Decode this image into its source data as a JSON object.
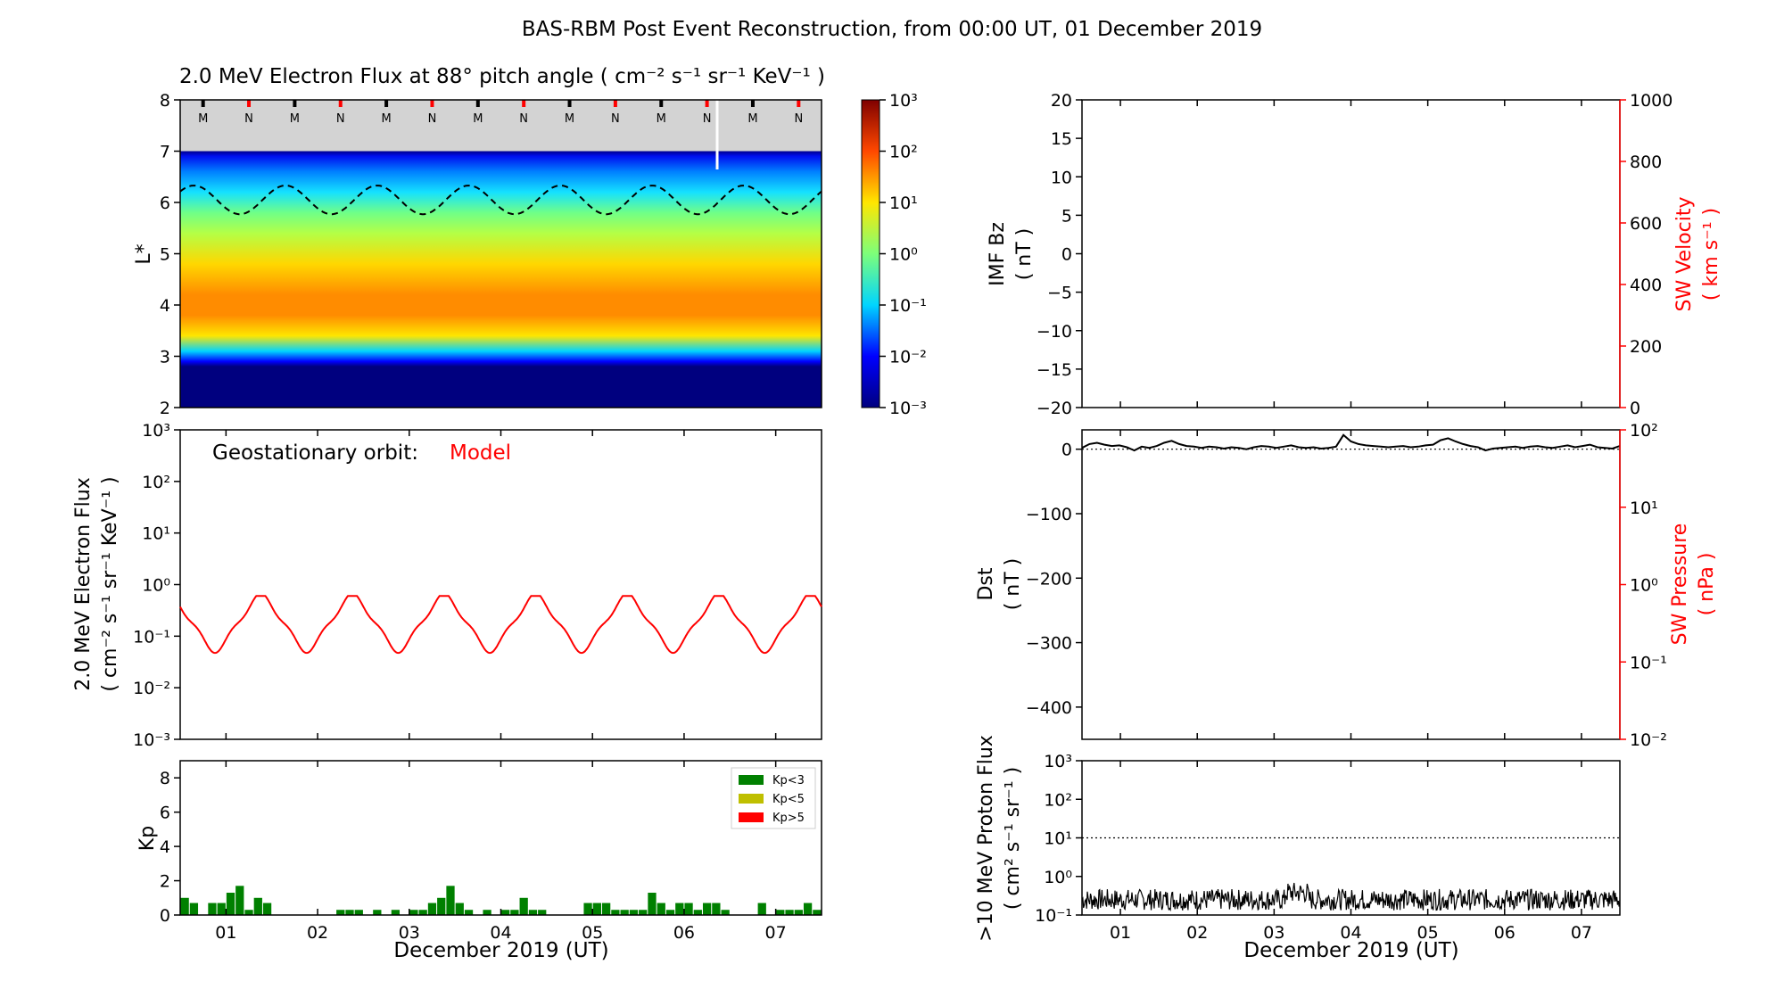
{
  "page": {
    "title": "BAS-RBM Post Event Reconstruction, from 00:00 UT, 01 December 2019"
  },
  "shared": {
    "day_ticks": [
      "01",
      "02",
      "03",
      "04",
      "05",
      "06",
      "07"
    ],
    "x_axis_label": "December 2019 (UT)"
  },
  "chart_data": [
    {
      "id": "lstar-flux",
      "type": "heatmap",
      "title": "2.0 MeV Electron Flux at 88° pitch angle ( cm⁻² s⁻¹ sr⁻¹ KeV⁻¹ )",
      "ylabel": "L*",
      "ylim": [
        2,
        8
      ],
      "yticks": [
        "2",
        "3",
        "4",
        "5",
        "6",
        "7",
        "8"
      ],
      "colorbar": {
        "scale": "log",
        "ticks": [
          "10⁻³",
          "10⁻²",
          "10⁻¹",
          "10⁰",
          "10¹",
          "10²",
          "10³"
        ],
        "stops": [
          "#00007f",
          "#0000ff",
          "#00d5ff",
          "#7dff7a",
          "#ffe600",
          "#ff4800",
          "#7f0000"
        ]
      },
      "profile": {
        "L": [
          2.0,
          2.8,
          2.9,
          3.1,
          3.4,
          3.8,
          4.2,
          4.8,
          5.4,
          5.8,
          6.2,
          6.6,
          6.9,
          7.0
        ],
        "color": [
          "#00007f",
          "#00007f",
          "#0000ff",
          "#00d5ff",
          "#ffe600",
          "#ff8c00",
          "#ff8c00",
          "#ffd700",
          "#b4ff46",
          "#6fff88",
          "#15e1ff",
          "#0080ff",
          "#0010f0",
          "#00008f"
        ]
      },
      "fill_above": "#d3d3d3",
      "fill_above_from": 7.0,
      "markers": [
        {
          "label": "M",
          "color": "#000000"
        },
        {
          "label": "N",
          "color": "#ff0000"
        },
        {
          "label": "M",
          "color": "#000000"
        },
        {
          "label": "N",
          "color": "#ff0000"
        },
        {
          "label": "M",
          "color": "#000000"
        },
        {
          "label": "N",
          "color": "#ff0000"
        },
        {
          "label": "M",
          "color": "#000000"
        },
        {
          "label": "N",
          "color": "#ff0000"
        },
        {
          "label": "M",
          "color": "#000000"
        },
        {
          "label": "N",
          "color": "#ff0000"
        },
        {
          "label": "M",
          "color": "#000000"
        },
        {
          "label": "N",
          "color": "#ff0000"
        },
        {
          "label": "M",
          "color": "#000000"
        },
        {
          "label": "N",
          "color": "#ff0000"
        }
      ],
      "geo_orbit_line": {
        "style": "dashed",
        "mean_L": 6.05,
        "amplitude": 0.28,
        "period_days": 1
      }
    },
    {
      "id": "geo-flux",
      "type": "line",
      "annotation": "Geostationary orbit:",
      "annotation_model": "Model",
      "ylabel": [
        "2.0 MeV Electron Flux",
        "( cm⁻² s⁻¹ sr⁻¹ KeV⁻¹ )"
      ],
      "yscale": "log",
      "ylim_log10": [
        -3,
        3
      ],
      "yticks": [
        "10⁻³",
        "10⁻²",
        "10⁻¹",
        "10⁰",
        "10¹",
        "10²",
        "10³"
      ],
      "series": [
        {
          "color": "#ff0000",
          "base": 0.18,
          "amplitude": 0.5,
          "max": 0.6,
          "min": 0.04
        }
      ]
    },
    {
      "id": "kp",
      "type": "bar",
      "ylabel": "Kp",
      "ylim": [
        0,
        9
      ],
      "yticks": [
        "0",
        "2",
        "4",
        "6",
        "8"
      ],
      "legend": [
        {
          "label": "Kp<3",
          "color": "#008000"
        },
        {
          "label": "Kp<5",
          "color": "#bfbf00"
        },
        {
          "label": "Kp>5",
          "color": "#ff0000"
        }
      ],
      "legend_position": "top-right",
      "values": [
        1.0,
        0.7,
        0,
        0.7,
        0.7,
        1.3,
        1.7,
        0.3,
        1.0,
        0.7,
        0,
        0,
        0,
        0,
        0,
        0,
        0,
        0.3,
        0.3,
        0.3,
        0,
        0.3,
        0,
        0.3,
        0,
        0.3,
        0.3,
        0.7,
        1.0,
        1.7,
        0.7,
        0.3,
        0,
        0.3,
        0,
        0.3,
        0.3,
        1.0,
        0.3,
        0.3,
        0,
        0,
        0,
        0,
        0.7,
        0.7,
        0.7,
        0.3,
        0.3,
        0.3,
        0.3,
        1.3,
        0.7,
        0.3,
        0.7,
        0.7,
        0.3,
        0.7,
        0.7,
        0.3,
        0,
        0,
        0,
        0.7,
        0,
        0.3,
        0.3,
        0.3,
        0.7,
        0.3
      ]
    },
    {
      "id": "imf-sw",
      "type": "line",
      "ylabel": [
        "IMF Bz",
        "( nT )"
      ],
      "ylim": [
        -20,
        20
      ],
      "yticks": [
        "−20",
        "−15",
        "−10",
        "−5",
        "0",
        "5",
        "10",
        "15",
        "20"
      ],
      "y2label": [
        "SW Velocity",
        "( km s⁻¹ )"
      ],
      "y2lim": [
        0,
        1000
      ],
      "y2ticks": [
        "0",
        "200",
        "400",
        "600",
        "800",
        "1000"
      ],
      "series": []
    },
    {
      "id": "dst",
      "type": "line",
      "ylabel": [
        "Dst",
        "( nT )"
      ],
      "ylim": [
        -450,
        30
      ],
      "yticks": [
        "−400",
        "−300",
        "−200",
        "−100",
        "0"
      ],
      "y2label": [
        "SW Pressure",
        "( nPa )"
      ],
      "y2lim_log10": [
        -2,
        2
      ],
      "y2ticks": [
        "10⁻²",
        "10⁻¹",
        "10⁰",
        "10¹",
        "10²"
      ],
      "reference_line": 0,
      "series": [
        {
          "color": "#000000",
          "values": [
            2,
            8,
            10,
            7,
            5,
            6,
            3,
            -2,
            4,
            2,
            5,
            10,
            13,
            8,
            5,
            4,
            2,
            4,
            3,
            1,
            3,
            2,
            0,
            3,
            5,
            4,
            2,
            4,
            6,
            3,
            2,
            3,
            1,
            2,
            4,
            22,
            12,
            8,
            6,
            5,
            4,
            3,
            4,
            5,
            3,
            4,
            6,
            7,
            14,
            17,
            12,
            8,
            5,
            3,
            -2,
            1,
            2,
            3,
            4,
            2,
            4,
            5,
            3,
            2,
            4,
            6,
            3,
            5,
            7,
            3,
            2,
            1,
            5
          ]
        }
      ]
    },
    {
      "id": "proton-flux",
      "type": "line",
      "ylabel": [
        ">10 MeV Proton Flux",
        "( cm² s⁻¹ sr⁻¹ )"
      ],
      "yscale": "log",
      "ylim_log10": [
        -1,
        3
      ],
      "yticks": [
        "10⁻¹",
        "10⁰",
        "10¹",
        "10²",
        "10³"
      ],
      "reference_line_log10": 1,
      "series": [
        {
          "color": "#000000",
          "typical": 0.25
        }
      ]
    }
  ]
}
